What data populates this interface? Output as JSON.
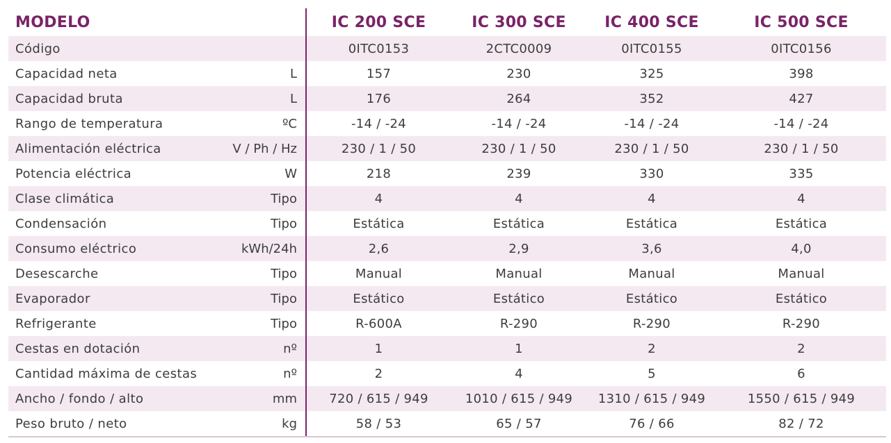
{
  "header": {
    "model_label": "MODELO",
    "unit_label": "",
    "models": [
      "IC 200 SCE",
      "IC 300 SCE",
      "IC 400 SCE",
      "IC 500 SCE"
    ]
  },
  "rows": [
    {
      "label": "Código",
      "unit": "",
      "values": [
        "0ITC0153",
        "2CTC0009",
        "0ITC0155",
        "0ITC0156"
      ]
    },
    {
      "label": "Capacidad neta",
      "unit": "L",
      "values": [
        "157",
        "230",
        "325",
        "398"
      ]
    },
    {
      "label": "Capacidad bruta",
      "unit": "L",
      "values": [
        "176",
        "264",
        "352",
        "427"
      ]
    },
    {
      "label": "Rango de temperatura",
      "unit": "ºC",
      "values": [
        "-14 / -24",
        "-14 / -24",
        "-14 / -24",
        "-14 / -24"
      ]
    },
    {
      "label": "Alimentación eléctrica",
      "unit": "V / Ph / Hz",
      "values": [
        "230 / 1 / 50",
        "230 / 1 / 50",
        "230 / 1 / 50",
        "230 / 1 / 50"
      ]
    },
    {
      "label": "Potencia eléctrica",
      "unit": "W",
      "values": [
        "218",
        "239",
        "330",
        "335"
      ]
    },
    {
      "label": "Clase climática",
      "unit": "Tipo",
      "values": [
        "4",
        "4",
        "4",
        "4"
      ]
    },
    {
      "label": "Condensación",
      "unit": "Tipo",
      "values": [
        "Estática",
        "Estática",
        "Estática",
        "Estática"
      ]
    },
    {
      "label": "Consumo eléctrico",
      "unit": "kWh/24h",
      "values": [
        "2,6",
        "2,9",
        "3,6",
        "4,0"
      ]
    },
    {
      "label": "Desescarche",
      "unit": "Tipo",
      "values": [
        "Manual",
        "Manual",
        "Manual",
        "Manual"
      ]
    },
    {
      "label": "Evaporador",
      "unit": "Tipo",
      "values": [
        "Estático",
        "Estático",
        "Estático",
        "Estático"
      ]
    },
    {
      "label": "Refrigerante",
      "unit": "Tipo",
      "values": [
        "R-600A",
        "R-290",
        "R-290",
        "R-290"
      ]
    },
    {
      "label": "Cestas en dotación",
      "unit": "nº",
      "values": [
        "1",
        "1",
        "2",
        "2"
      ]
    },
    {
      "label": "Cantidad máxima de cestas",
      "unit": "nº",
      "values": [
        "2",
        "4",
        "5",
        "6"
      ]
    },
    {
      "label": "Ancho / fondo / alto",
      "unit": "mm",
      "values": [
        "720 / 615 / 949",
        "1010 / 615 / 949",
        "1310 / 615 / 949",
        "1550 / 615 / 949"
      ]
    },
    {
      "label": "Peso bruto / neto",
      "unit": "kg",
      "values": [
        "58 / 53",
        "65 / 57",
        "76 / 66",
        "82 / 72"
      ]
    }
  ],
  "colors": {
    "accent": "#7a2368",
    "row_shade": "#f4e9f1",
    "text": "#3d3d3d"
  }
}
